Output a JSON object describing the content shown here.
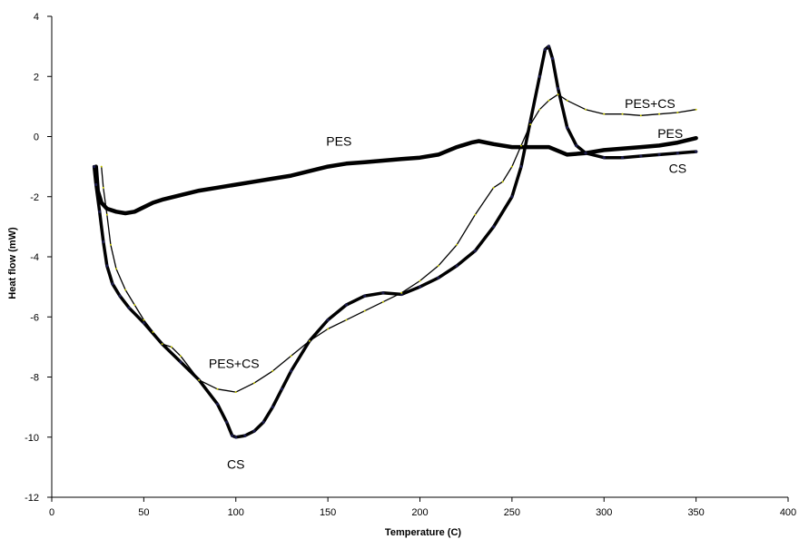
{
  "chart_data": {
    "type": "line",
    "title": "",
    "xlabel": "Temperature (C)",
    "ylabel": "Heat flow (mW)",
    "xlim": [
      0,
      400
    ],
    "ylim": [
      -12,
      4
    ],
    "xticks": [
      "0",
      "50",
      "100",
      "150",
      "200",
      "250",
      "300",
      "350",
      "400"
    ],
    "yticks": [
      "4",
      "2",
      "0",
      "-2",
      "-4",
      "-6",
      "-8",
      "-10",
      "-12"
    ],
    "grid": false,
    "series": [
      {
        "name": "PES",
        "color": "#000000",
        "points": [
          [
            24,
            -1.0
          ],
          [
            25,
            -1.8
          ],
          [
            27,
            -2.2
          ],
          [
            30,
            -2.4
          ],
          [
            35,
            -2.5
          ],
          [
            40,
            -2.55
          ],
          [
            45,
            -2.5
          ],
          [
            50,
            -2.35
          ],
          [
            55,
            -2.2
          ],
          [
            60,
            -2.1
          ],
          [
            70,
            -1.95
          ],
          [
            80,
            -1.8
          ],
          [
            90,
            -1.7
          ],
          [
            100,
            -1.6
          ],
          [
            110,
            -1.5
          ],
          [
            120,
            -1.4
          ],
          [
            130,
            -1.3
          ],
          [
            140,
            -1.15
          ],
          [
            150,
            -1.0
          ],
          [
            160,
            -0.9
          ],
          [
            170,
            -0.85
          ],
          [
            180,
            -0.8
          ],
          [
            190,
            -0.75
          ],
          [
            200,
            -0.7
          ],
          [
            210,
            -0.6
          ],
          [
            220,
            -0.35
          ],
          [
            228,
            -0.2
          ],
          [
            232,
            -0.15
          ],
          [
            240,
            -0.25
          ],
          [
            250,
            -0.35
          ],
          [
            260,
            -0.35
          ],
          [
            270,
            -0.35
          ],
          [
            280,
            -0.6
          ],
          [
            290,
            -0.55
          ],
          [
            300,
            -0.45
          ],
          [
            310,
            -0.4
          ],
          [
            320,
            -0.35
          ],
          [
            330,
            -0.3
          ],
          [
            340,
            -0.2
          ],
          [
            350,
            -0.05
          ]
        ]
      },
      {
        "name": "CS",
        "color": "#000000",
        "points": [
          [
            23,
            -1.0
          ],
          [
            24,
            -1.6
          ],
          [
            26,
            -2.5
          ],
          [
            28,
            -3.5
          ],
          [
            30,
            -4.3
          ],
          [
            33,
            -4.9
          ],
          [
            37,
            -5.3
          ],
          [
            42,
            -5.7
          ],
          [
            50,
            -6.2
          ],
          [
            60,
            -6.9
          ],
          [
            70,
            -7.5
          ],
          [
            80,
            -8.1
          ],
          [
            90,
            -8.9
          ],
          [
            95,
            -9.5
          ],
          [
            98,
            -9.95
          ],
          [
            100,
            -10.0
          ],
          [
            105,
            -9.95
          ],
          [
            110,
            -9.8
          ],
          [
            115,
            -9.5
          ],
          [
            120,
            -9.0
          ],
          [
            125,
            -8.4
          ],
          [
            130,
            -7.8
          ],
          [
            140,
            -6.8
          ],
          [
            150,
            -6.1
          ],
          [
            160,
            -5.6
          ],
          [
            170,
            -5.3
          ],
          [
            180,
            -5.2
          ],
          [
            190,
            -5.25
          ],
          [
            200,
            -5.0
          ],
          [
            210,
            -4.7
          ],
          [
            220,
            -4.3
          ],
          [
            230,
            -3.8
          ],
          [
            240,
            -3.0
          ],
          [
            250,
            -2.0
          ],
          [
            255,
            -1.0
          ],
          [
            260,
            0.5
          ],
          [
            265,
            2.0
          ],
          [
            268,
            2.9
          ],
          [
            270,
            3.0
          ],
          [
            272,
            2.6
          ],
          [
            275,
            1.6
          ],
          [
            280,
            0.3
          ],
          [
            285,
            -0.3
          ],
          [
            290,
            -0.55
          ],
          [
            300,
            -0.7
          ],
          [
            310,
            -0.7
          ],
          [
            320,
            -0.65
          ],
          [
            330,
            -0.6
          ],
          [
            340,
            -0.55
          ],
          [
            350,
            -0.5
          ]
        ]
      },
      {
        "name": "PES+CS",
        "color": "#000000",
        "points": [
          [
            27,
            -1.0
          ],
          [
            28,
            -1.7
          ],
          [
            30,
            -2.6
          ],
          [
            32,
            -3.6
          ],
          [
            35,
            -4.4
          ],
          [
            40,
            -5.1
          ],
          [
            45,
            -5.6
          ],
          [
            50,
            -6.1
          ],
          [
            55,
            -6.5
          ],
          [
            60,
            -6.9
          ],
          [
            65,
            -7.0
          ],
          [
            70,
            -7.3
          ],
          [
            80,
            -8.1
          ],
          [
            90,
            -8.4
          ],
          [
            100,
            -8.5
          ],
          [
            110,
            -8.2
          ],
          [
            120,
            -7.8
          ],
          [
            130,
            -7.3
          ],
          [
            140,
            -6.8
          ],
          [
            150,
            -6.4
          ],
          [
            160,
            -6.1
          ],
          [
            170,
            -5.8
          ],
          [
            180,
            -5.5
          ],
          [
            190,
            -5.2
          ],
          [
            200,
            -4.8
          ],
          [
            210,
            -4.3
          ],
          [
            220,
            -3.6
          ],
          [
            230,
            -2.6
          ],
          [
            240,
            -1.7
          ],
          [
            245,
            -1.5
          ],
          [
            250,
            -1.0
          ],
          [
            255,
            -0.3
          ],
          [
            260,
            0.4
          ],
          [
            265,
            0.9
          ],
          [
            270,
            1.2
          ],
          [
            275,
            1.4
          ],
          [
            280,
            1.2
          ],
          [
            290,
            0.9
          ],
          [
            300,
            0.75
          ],
          [
            310,
            0.75
          ],
          [
            320,
            0.7
          ],
          [
            330,
            0.75
          ],
          [
            340,
            0.8
          ],
          [
            350,
            0.9
          ]
        ]
      }
    ],
    "annotations": [
      {
        "text": "PES",
        "x": 156,
        "y": -0.15
      },
      {
        "text": "PES+CS",
        "x": 325,
        "y": 1.1
      },
      {
        "text": "PES",
        "x": 336,
        "y": 0.1
      },
      {
        "text": "CS",
        "x": 340,
        "y": -1.05
      },
      {
        "text": "PES+CS",
        "x": 99,
        "y": -7.55
      },
      {
        "text": "CS",
        "x": 100,
        "y": -10.9
      }
    ]
  }
}
